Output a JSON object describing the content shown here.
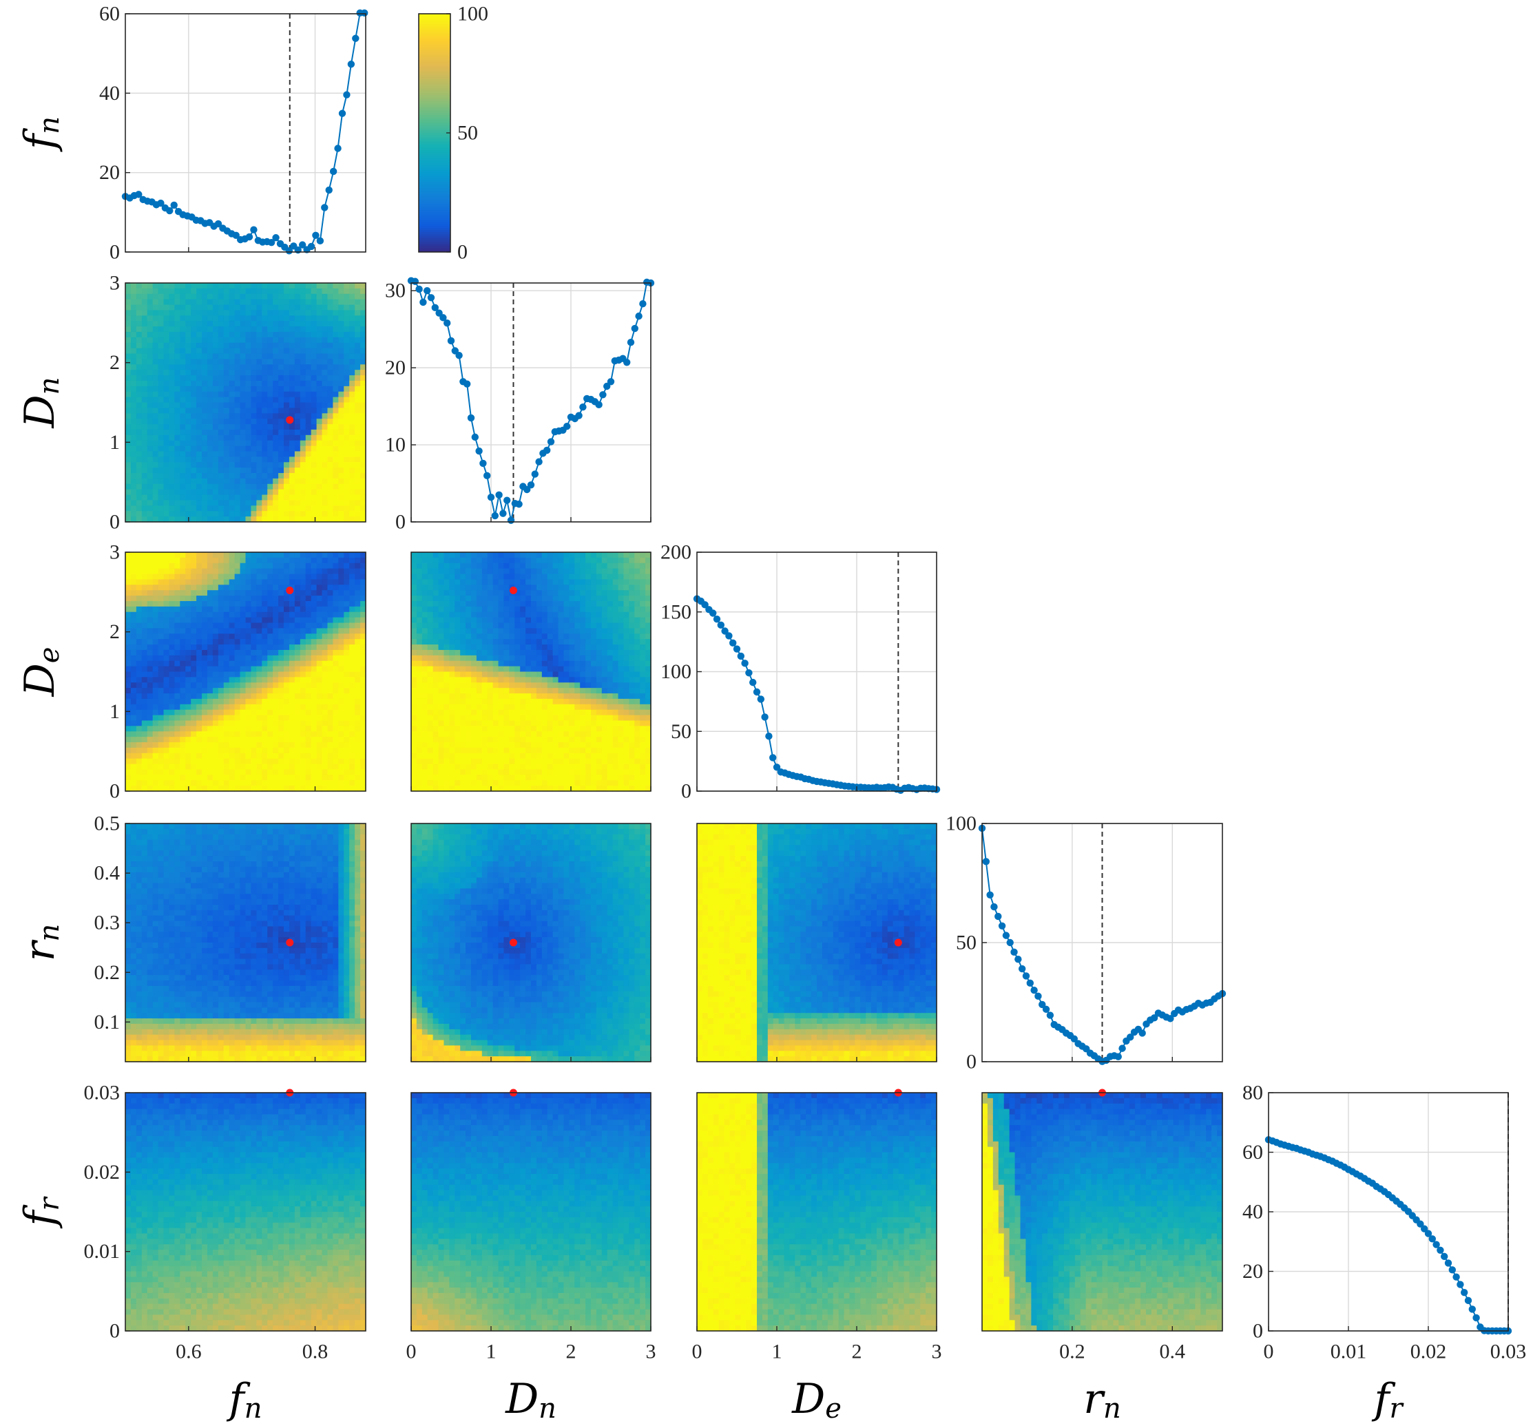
{
  "chart_data": {
    "type": "corner-plot",
    "title": "",
    "variables": [
      {
        "key": "fn",
        "base": "f",
        "sub": "n",
        "range": [
          0.5,
          0.88
        ],
        "ticks": [
          0.6,
          0.8
        ],
        "tick_labels": [
          "0.6",
          "0.8"
        ],
        "best": 0.76
      },
      {
        "key": "Dn",
        "base": "D",
        "sub": "n",
        "range": [
          0,
          3
        ],
        "ticks": [
          0,
          1,
          2,
          3
        ],
        "tick_labels": [
          "0",
          "1",
          "2",
          "3"
        ],
        "best": 1.28
      },
      {
        "key": "De",
        "base": "D",
        "sub": "e",
        "range": [
          0,
          3
        ],
        "ticks": [
          0,
          1,
          2,
          3
        ],
        "tick_labels": [
          "0",
          "1",
          "2",
          "3"
        ],
        "best": 2.52
      },
      {
        "key": "rn",
        "base": "r",
        "sub": "n",
        "range": [
          0.02,
          0.5
        ],
        "ticks": [
          0.1,
          0.2,
          0.3,
          0.4,
          0.5
        ],
        "tick_labels": [
          "0.1",
          "0.2",
          "0.3",
          "0.4",
          "0.5"
        ],
        "xticks": [
          0.2,
          0.4
        ],
        "xtick_labels": [
          "0.2",
          "0.4"
        ],
        "best": 0.26
      },
      {
        "key": "fr",
        "base": "f",
        "sub": "r",
        "range": [
          0,
          0.03
        ],
        "ticks": [
          0,
          0.01,
          0.02,
          0.03
        ],
        "tick_labels": [
          "0",
          "0.01",
          "0.02",
          "0.03"
        ],
        "best": 0.03
      }
    ],
    "profiles": [
      {
        "var": "fn",
        "ylim": [
          0,
          60
        ],
        "yticks": [
          0,
          20,
          40,
          60
        ],
        "ytick_labels": [
          "0",
          "20",
          "40",
          "60"
        ],
        "x": [
          0.5,
          0.507,
          0.514,
          0.521,
          0.528,
          0.535,
          0.542,
          0.549,
          0.556,
          0.563,
          0.57,
          0.577,
          0.584,
          0.591,
          0.598,
          0.605,
          0.612,
          0.619,
          0.626,
          0.633,
          0.64,
          0.647,
          0.654,
          0.661,
          0.668,
          0.675,
          0.682,
          0.689,
          0.696,
          0.703,
          0.71,
          0.717,
          0.724,
          0.731,
          0.738,
          0.745,
          0.752,
          0.759,
          0.766,
          0.773,
          0.78,
          0.787,
          0.794,
          0.801,
          0.808,
          0.815,
          0.822,
          0.829,
          0.836,
          0.843,
          0.85,
          0.857,
          0.864,
          0.871,
          0.878
        ],
        "y": [
          14,
          13.6,
          14.2,
          14.5,
          13.2,
          12.8,
          12.6,
          11.9,
          12.3,
          11.1,
          10.4,
          11.8,
          10.2,
          9.4,
          9.1,
          8.8,
          8.0,
          7.9,
          7.2,
          7.4,
          6.5,
          7.1,
          6.0,
          5.3,
          4.6,
          4.2,
          3.1,
          3.3,
          3.8,
          5.6,
          2.9,
          2.5,
          2.6,
          2.4,
          3.6,
          2.1,
          1.2,
          0.3,
          1.5,
          0.5,
          1.8,
          0.6,
          1.4,
          4.2,
          2.8,
          11.2,
          15.6,
          20.3,
          26.1,
          34.9,
          39.6,
          47.3,
          53.8,
          60.2,
          60.2
        ]
      },
      {
        "var": "Dn",
        "ylim": [
          0,
          31
        ],
        "yticks": [
          0,
          10,
          20,
          30
        ],
        "ytick_labels": [
          "0",
          "10",
          "20",
          "30"
        ],
        "x": [
          0.0,
          0.05,
          0.1,
          0.15,
          0.2,
          0.25,
          0.3,
          0.35,
          0.4,
          0.45,
          0.5,
          0.55,
          0.6,
          0.65,
          0.7,
          0.75,
          0.8,
          0.85,
          0.9,
          0.95,
          1.0,
          1.05,
          1.1,
          1.15,
          1.2,
          1.25,
          1.3,
          1.35,
          1.4,
          1.45,
          1.5,
          1.55,
          1.6,
          1.65,
          1.7,
          1.75,
          1.8,
          1.85,
          1.9,
          1.95,
          2.0,
          2.05,
          2.1,
          2.15,
          2.2,
          2.25,
          2.3,
          2.35,
          2.4,
          2.45,
          2.5,
          2.55,
          2.6,
          2.65,
          2.7,
          2.75,
          2.8,
          2.85,
          2.9,
          2.95,
          3.0
        ],
        "y": [
          31.3,
          31.2,
          30.2,
          28.5,
          30.0,
          29.1,
          27.8,
          27.1,
          26.5,
          25.8,
          23.5,
          22.2,
          21.6,
          18.2,
          17.9,
          13.5,
          11.0,
          9.2,
          7.6,
          6.0,
          3.2,
          0.8,
          3.5,
          1.1,
          2.8,
          0.2,
          2.4,
          2.3,
          4.6,
          4.2,
          4.8,
          6.2,
          7.8,
          8.9,
          9.3,
          10.4,
          11.7,
          11.8,
          11.9,
          12.4,
          13.6,
          13.4,
          13.8,
          14.9,
          16.0,
          15.9,
          15.6,
          15.2,
          16.5,
          17.6,
          18.2,
          20.9,
          21.0,
          21.2,
          20.7,
          23.3,
          25.1,
          26.7,
          28.3,
          31.1,
          31.0
        ]
      },
      {
        "var": "De",
        "ylim": [
          0,
          200
        ],
        "yticks": [
          0,
          50,
          100,
          150,
          200
        ],
        "ytick_labels": [
          "0",
          "50",
          "100",
          "150",
          "200"
        ],
        "x": [
          0.0,
          0.05,
          0.1,
          0.15,
          0.2,
          0.25,
          0.3,
          0.35,
          0.4,
          0.45,
          0.5,
          0.55,
          0.6,
          0.65,
          0.7,
          0.75,
          0.8,
          0.85,
          0.9,
          0.95,
          1.0,
          1.05,
          1.1,
          1.15,
          1.2,
          1.25,
          1.3,
          1.35,
          1.4,
          1.45,
          1.5,
          1.55,
          1.6,
          1.65,
          1.7,
          1.75,
          1.8,
          1.85,
          1.9,
          1.95,
          2.0,
          2.05,
          2.1,
          2.15,
          2.2,
          2.25,
          2.3,
          2.35,
          2.4,
          2.45,
          2.5,
          2.55,
          2.6,
          2.65,
          2.7,
          2.75,
          2.8,
          2.85,
          2.9,
          2.95,
          3.0
        ],
        "y": [
          161,
          159,
          156,
          152,
          149,
          144,
          139,
          134,
          130,
          124,
          119,
          113,
          107,
          99,
          91,
          83,
          77,
          62,
          46,
          28,
          20,
          16,
          15.2,
          14,
          13.1,
          12.2,
          11.8,
          10.4,
          9.9,
          8.8,
          8.1,
          7.7,
          7.0,
          6.5,
          6.1,
          5.4,
          4.9,
          4.3,
          4.0,
          3.6,
          3.3,
          3.3,
          3.0,
          2.8,
          2.7,
          3.2,
          2.6,
          2.9,
          3.5,
          3.1,
          1.6,
          0.7,
          2.4,
          3.0,
          2.1,
          1.3,
          2.4,
          2.6,
          2.1,
          1.8,
          1.4
        ]
      },
      {
        "var": "rn",
        "ylim": [
          0,
          100
        ],
        "yticks": [
          0,
          50,
          100
        ],
        "ytick_labels": [
          "0",
          "50",
          "100"
        ],
        "x": [
          0.02,
          0.028,
          0.036,
          0.044,
          0.052,
          0.06,
          0.068,
          0.076,
          0.084,
          0.092,
          0.1,
          0.108,
          0.116,
          0.124,
          0.132,
          0.14,
          0.148,
          0.156,
          0.164,
          0.172,
          0.18,
          0.188,
          0.196,
          0.204,
          0.212,
          0.22,
          0.228,
          0.236,
          0.244,
          0.252,
          0.26,
          0.268,
          0.276,
          0.284,
          0.292,
          0.3,
          0.308,
          0.316,
          0.324,
          0.332,
          0.34,
          0.348,
          0.356,
          0.364,
          0.372,
          0.38,
          0.388,
          0.396,
          0.404,
          0.412,
          0.42,
          0.428,
          0.436,
          0.444,
          0.452,
          0.46,
          0.468,
          0.476,
          0.484,
          0.492,
          0.5
        ],
        "y": [
          98,
          84,
          70,
          65,
          61,
          57,
          53,
          50,
          46,
          43,
          39,
          36,
          33,
          30,
          27.5,
          24,
          22,
          19.5,
          15.6,
          14.5,
          13.5,
          12.0,
          11.0,
          9.6,
          7.6,
          6.5,
          5.4,
          3.6,
          2.5,
          1.2,
          0.1,
          0.6,
          2.2,
          2.5,
          2.1,
          5.6,
          8.7,
          10.3,
          12.4,
          13.6,
          12.0,
          15.8,
          17.5,
          18.4,
          20.4,
          19.6,
          18.7,
          18.1,
          20.2,
          21.7,
          20.9,
          21.9,
          22.4,
          23.3,
          24.5,
          23.8,
          24.6,
          24.9,
          26.4,
          27.6,
          28.6
        ]
      },
      {
        "var": "fr",
        "ylim": [
          0,
          80
        ],
        "yticks": [
          0,
          20,
          40,
          60,
          80
        ],
        "ytick_labels": [
          "0",
          "20",
          "40",
          "60",
          "80"
        ],
        "x": [
          0.0,
          0.0005,
          0.001,
          0.0015,
          0.002,
          0.0025,
          0.003,
          0.0035,
          0.004,
          0.0045,
          0.005,
          0.0055,
          0.006,
          0.0065,
          0.007,
          0.0075,
          0.008,
          0.0085,
          0.009,
          0.0095,
          0.01,
          0.0105,
          0.011,
          0.0115,
          0.012,
          0.0125,
          0.013,
          0.0135,
          0.014,
          0.0145,
          0.015,
          0.0155,
          0.016,
          0.0165,
          0.017,
          0.0175,
          0.018,
          0.0185,
          0.019,
          0.0195,
          0.02,
          0.0205,
          0.021,
          0.0215,
          0.022,
          0.0225,
          0.023,
          0.0235,
          0.024,
          0.0245,
          0.025,
          0.0255,
          0.026,
          0.0265,
          0.027,
          0.0275,
          0.028,
          0.0285,
          0.029,
          0.0295,
          0.03
        ],
        "y": [
          64.2,
          63.8,
          63.3,
          62.8,
          62.4,
          62.0,
          61.6,
          61.3,
          60.8,
          60.4,
          60.0,
          59.4,
          59.0,
          58.6,
          58.1,
          57.5,
          57.0,
          56.3,
          55.7,
          55.0,
          54.2,
          53.5,
          52.7,
          52.0,
          51.2,
          50.3,
          49.6,
          48.5,
          47.7,
          46.8,
          45.8,
          44.7,
          43.6,
          42.5,
          41.3,
          40.1,
          38.7,
          37.3,
          35.9,
          34.3,
          32.7,
          30.9,
          29.0,
          27.1,
          25.0,
          22.8,
          20.5,
          18.1,
          15.6,
          12.9,
          10.2,
          7.3,
          4.4,
          1.3,
          0.1,
          0.0,
          0.0,
          0.0,
          0.0,
          0.0,
          0.0
        ]
      }
    ],
    "colorbar": {
      "min": 0,
      "max": 100,
      "ticks": [
        0,
        50,
        100
      ],
      "tick_labels": [
        "0",
        "50",
        "100"
      ],
      "colormap": "parula"
    },
    "heatmaps": [
      {
        "x": "fn",
        "y": "Dn"
      },
      {
        "x": "fn",
        "y": "De"
      },
      {
        "x": "Dn",
        "y": "De"
      },
      {
        "x": "fn",
        "y": "rn"
      },
      {
        "x": "Dn",
        "y": "rn"
      },
      {
        "x": "De",
        "y": "rn"
      },
      {
        "x": "fn",
        "y": "fr"
      },
      {
        "x": "Dn",
        "y": "fr"
      },
      {
        "x": "De",
        "y": "fr"
      },
      {
        "x": "rn",
        "y": "fr"
      }
    ],
    "best_marker_color": "#ff1a1a",
    "line_color": "#0072bd"
  }
}
